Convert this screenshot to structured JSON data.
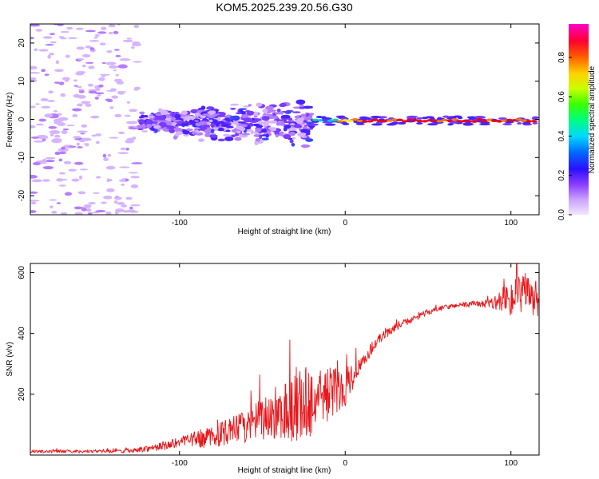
{
  "title": "KOM5.2025.239.20.56.G30",
  "colors": {
    "snr_line": "#e8171b",
    "frame": "#000000",
    "scatter": [
      "#d6b4ff",
      "#b47cff",
      "#7a3cff",
      "#4a22ff",
      "#2f4bff",
      "#00c0ff",
      "#00e28a",
      "#ffe600",
      "#ff7a00",
      "#e8001a"
    ]
  },
  "chart_data": [
    {
      "type": "heatmap",
      "name": "spectrogram",
      "xlabel": "Height of straight line (km)",
      "ylabel": "Frequency (Hz)",
      "xlim": [
        -190,
        117
      ],
      "ylim": [
        -25,
        25
      ],
      "xticks": [
        -100,
        0,
        100
      ],
      "xtick_labels": [
        "-100",
        "0",
        "100"
      ],
      "yticks": [
        -20,
        -10,
        0,
        10,
        20
      ],
      "ytick_labels": [
        "-20",
        "-10",
        "0",
        "10",
        "20"
      ],
      "regions": [
        {
          "x_range": [
            -190,
            -125
          ],
          "freq_spread": 25,
          "amplitude": 0.05,
          "description": "sparse noise"
        },
        {
          "x_range": [
            -125,
            -20
          ],
          "freq_spread": 8,
          "amplitude": 0.2,
          "description": "broadband echo"
        },
        {
          "x_range": [
            -20,
            117
          ],
          "freq_spread": 1,
          "amplitude": 0.9,
          "description": "narrow signal near 0 Hz"
        }
      ],
      "colorbar": {
        "label": "Normalized spectral amplitude",
        "range": [
          0,
          0.97
        ],
        "ticks": [
          0.0,
          0.2,
          0.4,
          0.6,
          0.8
        ],
        "tick_labels": [
          "0.0",
          "0.2",
          "0.4",
          "0.6",
          "0.8"
        ]
      }
    },
    {
      "type": "line",
      "name": "snr",
      "xlabel": "Height of straight line (km)",
      "ylabel": "SNR (v/v)",
      "xlim": [
        -190,
        117
      ],
      "ylim": [
        0,
        630
      ],
      "xticks": [
        -100,
        0,
        100
      ],
      "xtick_labels": [
        "-100",
        "0",
        "100"
      ],
      "yticks": [
        200,
        400,
        600
      ],
      "ytick_labels": [
        "200",
        "400",
        "600"
      ],
      "series": [
        {
          "name": "SNR",
          "x": [
            -190,
            -160,
            -130,
            -115,
            -100,
            -80,
            -60,
            -45,
            -35,
            -25,
            -15,
            -5,
            0,
            10,
            20,
            30,
            40,
            50,
            60,
            70,
            80,
            90,
            100,
            110,
            117
          ],
          "y": [
            12,
            12,
            13,
            25,
            40,
            60,
            95,
            130,
            150,
            165,
            190,
            215,
            230,
            300,
            380,
            420,
            445,
            470,
            485,
            495,
            495,
            500,
            520,
            520,
            510
          ],
          "noise": [
            5,
            5,
            6,
            12,
            20,
            35,
            55,
            80,
            110,
            130,
            100,
            80,
            70,
            20,
            15,
            15,
            10,
            10,
            8,
            8,
            10,
            20,
            65,
            70,
            60
          ]
        }
      ]
    }
  ]
}
